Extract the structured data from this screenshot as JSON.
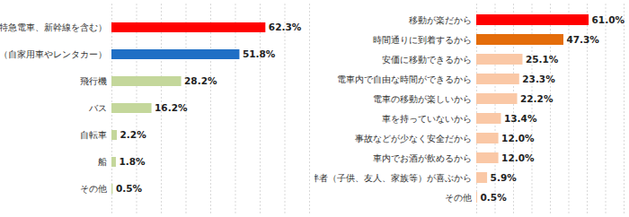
{
  "chart_data": [
    {
      "type": "bar",
      "orientation": "horizontal",
      "categories": [
        "電車（特急電車、新幹線を含む）",
        "車（自家用車やレンタカー）",
        "飛行機",
        "バス",
        "自転車",
        "船",
        "その他"
      ],
      "values": [
        62.3,
        51.8,
        28.2,
        16.2,
        2.2,
        1.8,
        0.5
      ],
      "value_labels": [
        "62.3%",
        "51.8%",
        "28.2%",
        "16.2%",
        "2.2%",
        "1.8%",
        "0.5%"
      ],
      "colors": [
        "#ff0000",
        "#1f6fc5",
        "#c4d79b",
        "#c4d79b",
        "#c4d79b",
        "#c4d79b",
        "#c4d79b"
      ],
      "xlim": [
        0,
        80
      ],
      "xticks": [
        0,
        10,
        20,
        30,
        40,
        50,
        60,
        70,
        80
      ],
      "grid": true,
      "data_labels": true,
      "tick_labels": "y"
    },
    {
      "type": "bar",
      "orientation": "horizontal",
      "categories": [
        "移動が楽だから",
        "時間通りに到着するから",
        "安価に移動できるから",
        "電車内で自由な時間ができるから",
        "電車の移動が楽しいから",
        "車を持っていないから",
        "事故などが少なく安全だから",
        "車内でお酒が飲めるから",
        "同伴者（子供、友人、家族等）が喜ぶから",
        "その他"
      ],
      "values": [
        61.0,
        47.3,
        25.1,
        23.3,
        22.2,
        13.4,
        12.0,
        12.0,
        5.9,
        0.5
      ],
      "value_labels": [
        "61.0%",
        "47.3%",
        "25.1%",
        "23.3%",
        "22.2%",
        "13.4%",
        "12.0%",
        "12.0%",
        "5.9%",
        "0.5%"
      ],
      "colors": [
        "#ff0000",
        "#e46c0a",
        "#fac8a6",
        "#fac8a6",
        "#fac8a6",
        "#fac8a6",
        "#fac8a6",
        "#fac8a6",
        "#fac8a6",
        "#fac8a6"
      ],
      "xlim": [
        0,
        80
      ],
      "xticks": [
        0,
        10,
        20,
        30,
        40,
        50,
        60,
        70,
        80
      ],
      "grid": true,
      "data_labels": true,
      "tick_labels": "y"
    }
  ]
}
